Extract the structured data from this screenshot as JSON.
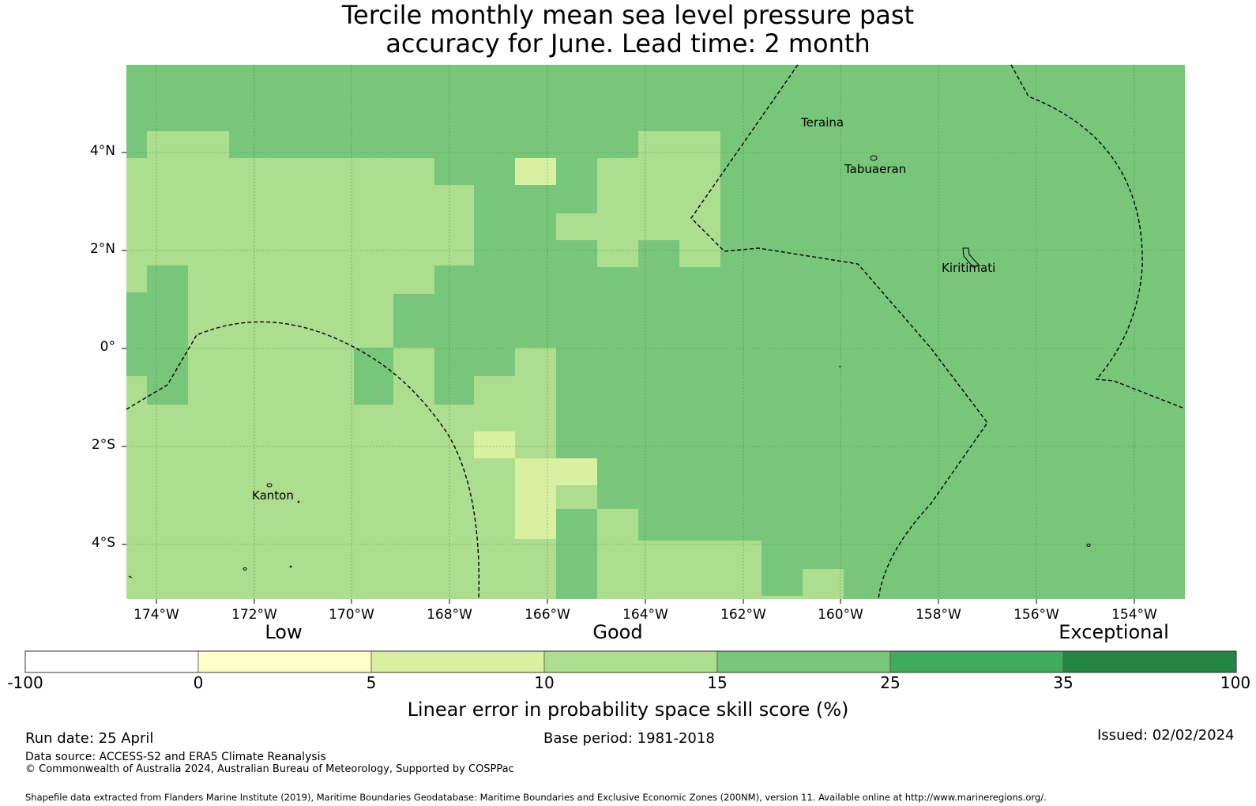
{
  "title_line1": "Tercile monthly mean sea level pressure past",
  "title_line2": "accuracy for June. Lead time: 2 month",
  "map": {
    "lon_range": [
      -174.6,
      -152.9
    ],
    "lat_range": [
      -5.2,
      5.8
    ],
    "lat_ticks": [
      "4°N",
      "2°N",
      "0°",
      "2°S",
      "4°S"
    ],
    "lon_ticks": [
      "174°W",
      "172°W",
      "170°W",
      "168°W",
      "166°W",
      "164°W",
      "162°W",
      "160°W",
      "158°W",
      "156°W",
      "154°W"
    ],
    "places": [
      {
        "name": "Teraina"
      },
      {
        "name": "Tabuaeran"
      },
      {
        "name": "Kiritimati"
      },
      {
        "name": "Kanton"
      }
    ],
    "colors": {
      "c5": "#d9f0a3",
      "c10": "#addd8e",
      "c15": "#78c679",
      "grid": "#3b7a3b"
    }
  },
  "colorbar": {
    "categories": [
      "Low",
      "Good",
      "Exceptional"
    ],
    "ticks": [
      "-100",
      "0",
      "5",
      "10",
      "15",
      "25",
      "35",
      "100"
    ],
    "colors": [
      "#ffffff",
      "#ffffcc",
      "#d9f0a3",
      "#addd8e",
      "#78c679",
      "#41ab5d",
      "#238443"
    ],
    "label": "Linear error in probability space skill score (%)"
  },
  "footer": {
    "run_date": "Run date: 25 April",
    "base_period": "Base period: 1981-2018",
    "issued": "Issued: 02/02/2024",
    "data_source": "Data source: ACCESS-S2 and ERA5 Climate Reanalysis",
    "copyright": "© Commonwealth of Australia 2024, Australian Bureau of Meteorology, Supported by COSPPac",
    "shapefile": "Shapefile data extracted from Flanders Marine Institute (2019), Maritime Boundaries Geodatabase: Maritime Boundaries and Exclusive Economic Zones (200NM), version 11. Available online at http://www.marineregions.org/."
  }
}
